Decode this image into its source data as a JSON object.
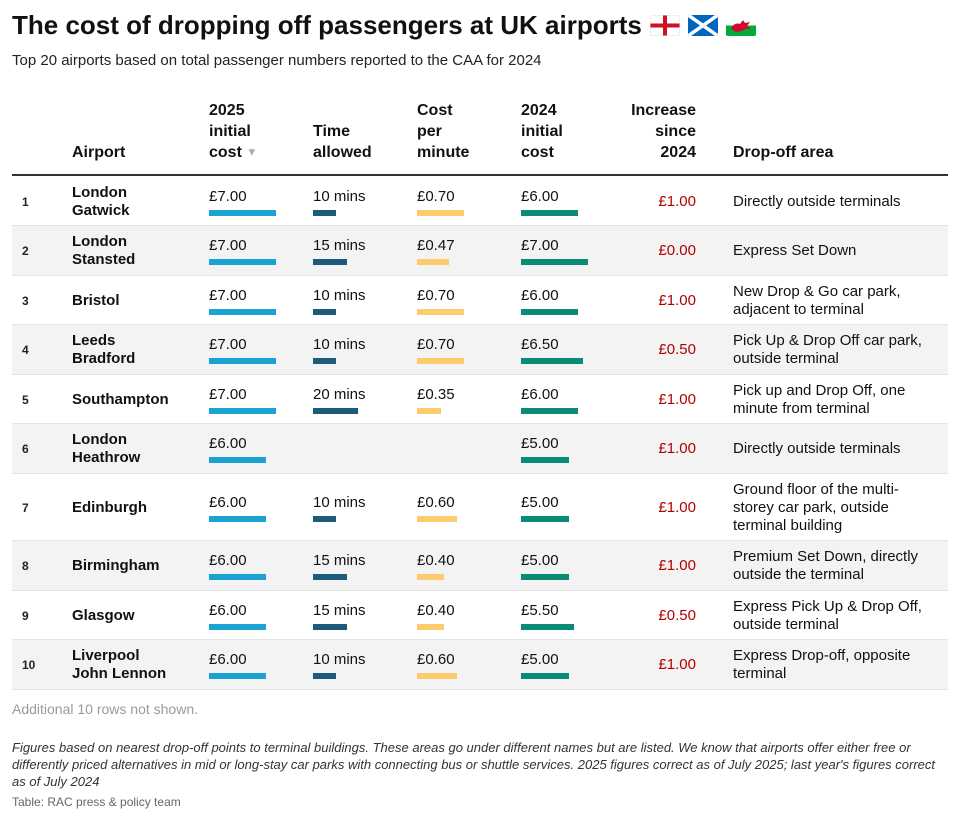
{
  "title": "The cost of dropping off passengers at UK airports",
  "flags": [
    "england-flag",
    "scotland-flag",
    "wales-flag"
  ],
  "subtitle": "Top 20 airports based on total passenger numbers reported to the CAA for 2024",
  "headers": {
    "airport": "Airport",
    "cost2025": [
      "2025",
      "initial",
      "cost"
    ],
    "time": [
      "Time",
      "allowed"
    ],
    "perMinute": [
      "Cost",
      "per",
      "minute"
    ],
    "cost2024": [
      "2024",
      "initial",
      "cost"
    ],
    "increase": [
      "Increase",
      "since",
      "2024"
    ],
    "area": "Drop-off area",
    "sort_icon": "▼"
  },
  "colors": {
    "cost2025": "#1aa2d4",
    "time": "#1e5b7a",
    "perMinute": "#fdcb6e",
    "cost2024": "#0a8c74",
    "increase": "#b10000"
  },
  "rows": [
    {
      "rank": "1",
      "airport": [
        "London",
        "Gatwick"
      ],
      "cost2025": "£7.00",
      "cost2025_value": 7.0,
      "time": "10 mins",
      "time_value": 10,
      "per": "£0.70",
      "per_value": 0.7,
      "cost2024": "£6.00",
      "cost2024_value": 6.0,
      "increase": "£1.00",
      "area": [
        "Directly outside terminals"
      ]
    },
    {
      "rank": "2",
      "airport": [
        "London",
        "Stansted"
      ],
      "cost2025": "£7.00",
      "cost2025_value": 7.0,
      "time": "15 mins",
      "time_value": 15,
      "per": "£0.47",
      "per_value": 0.47,
      "cost2024": "£7.00",
      "cost2024_value": 7.0,
      "increase": "£0.00",
      "area": [
        "Express Set Down"
      ]
    },
    {
      "rank": "3",
      "airport": [
        "Bristol"
      ],
      "cost2025": "£7.00",
      "cost2025_value": 7.0,
      "time": "10 mins",
      "time_value": 10,
      "per": "£0.70",
      "per_value": 0.7,
      "cost2024": "£6.00",
      "cost2024_value": 6.0,
      "increase": "£1.00",
      "area": [
        "New Drop & Go car park,",
        "adjacent to terminal"
      ]
    },
    {
      "rank": "4",
      "airport": [
        "Leeds",
        "Bradford"
      ],
      "cost2025": "£7.00",
      "cost2025_value": 7.0,
      "time": "10 mins",
      "time_value": 10,
      "per": "£0.70",
      "per_value": 0.7,
      "cost2024": "£6.50",
      "cost2024_value": 6.5,
      "increase": "£0.50",
      "area": [
        "Pick Up & Drop Off car park,",
        "outside terminal"
      ]
    },
    {
      "rank": "5",
      "airport": [
        "Southampton"
      ],
      "cost2025": "£7.00",
      "cost2025_value": 7.0,
      "time": "20 mins",
      "time_value": 20,
      "per": "£0.35",
      "per_value": 0.35,
      "cost2024": "£6.00",
      "cost2024_value": 6.0,
      "increase": "£1.00",
      "area": [
        "Pick up and Drop Off, one",
        "minute from terminal"
      ]
    },
    {
      "rank": "6",
      "airport": [
        "London",
        "Heathrow"
      ],
      "cost2025": "£6.00",
      "cost2025_value": 6.0,
      "time": "",
      "time_value": 0,
      "per": "",
      "per_value": 0,
      "cost2024": "£5.00",
      "cost2024_value": 5.0,
      "increase": "£1.00",
      "area": [
        "Directly outside terminals"
      ]
    },
    {
      "rank": "7",
      "airport": [
        "Edinburgh"
      ],
      "cost2025": "£6.00",
      "cost2025_value": 6.0,
      "time": "10 mins",
      "time_value": 10,
      "per": "£0.60",
      "per_value": 0.6,
      "cost2024": "£5.00",
      "cost2024_value": 5.0,
      "increase": "£1.00",
      "area": [
        "Ground floor of the multi-",
        "storey car park, outside",
        "terminal building"
      ]
    },
    {
      "rank": "8",
      "airport": [
        "Birmingham"
      ],
      "cost2025": "£6.00",
      "cost2025_value": 6.0,
      "time": "15 mins",
      "time_value": 15,
      "per": "£0.40",
      "per_value": 0.4,
      "cost2024": "£5.00",
      "cost2024_value": 5.0,
      "increase": "£1.00",
      "area": [
        "Premium Set Down, directly",
        "outside the terminal"
      ]
    },
    {
      "rank": "9",
      "airport": [
        "Glasgow"
      ],
      "cost2025": "£6.00",
      "cost2025_value": 6.0,
      "time": "15 mins",
      "time_value": 15,
      "per": "£0.40",
      "per_value": 0.4,
      "cost2024": "£5.50",
      "cost2024_value": 5.5,
      "increase": "£0.50",
      "area": [
        "Express Pick Up & Drop Off,",
        "outside terminal"
      ]
    },
    {
      "rank": "10",
      "airport": [
        "Liverpool",
        "John Lennon"
      ],
      "cost2025": "£6.00",
      "cost2025_value": 6.0,
      "time": "10 mins",
      "time_value": 10,
      "per": "£0.60",
      "per_value": 0.6,
      "cost2024": "£5.00",
      "cost2024_value": 5.0,
      "increase": "£1.00",
      "area": [
        "Express Drop-off, opposite",
        "terminal"
      ]
    }
  ],
  "more_rows": "Additional 10 rows not shown.",
  "footnote": "Figures based on nearest drop-off points to terminal buildings. These areas go under different names but are listed. We know that airports offer either free or differently priced alternatives in mid or long-stay car parks with connecting bus or shuttle services. 2025 figures correct as of July 2025; last year's figures correct as of July 2024",
  "source": "Table: RAC press & policy team"
}
